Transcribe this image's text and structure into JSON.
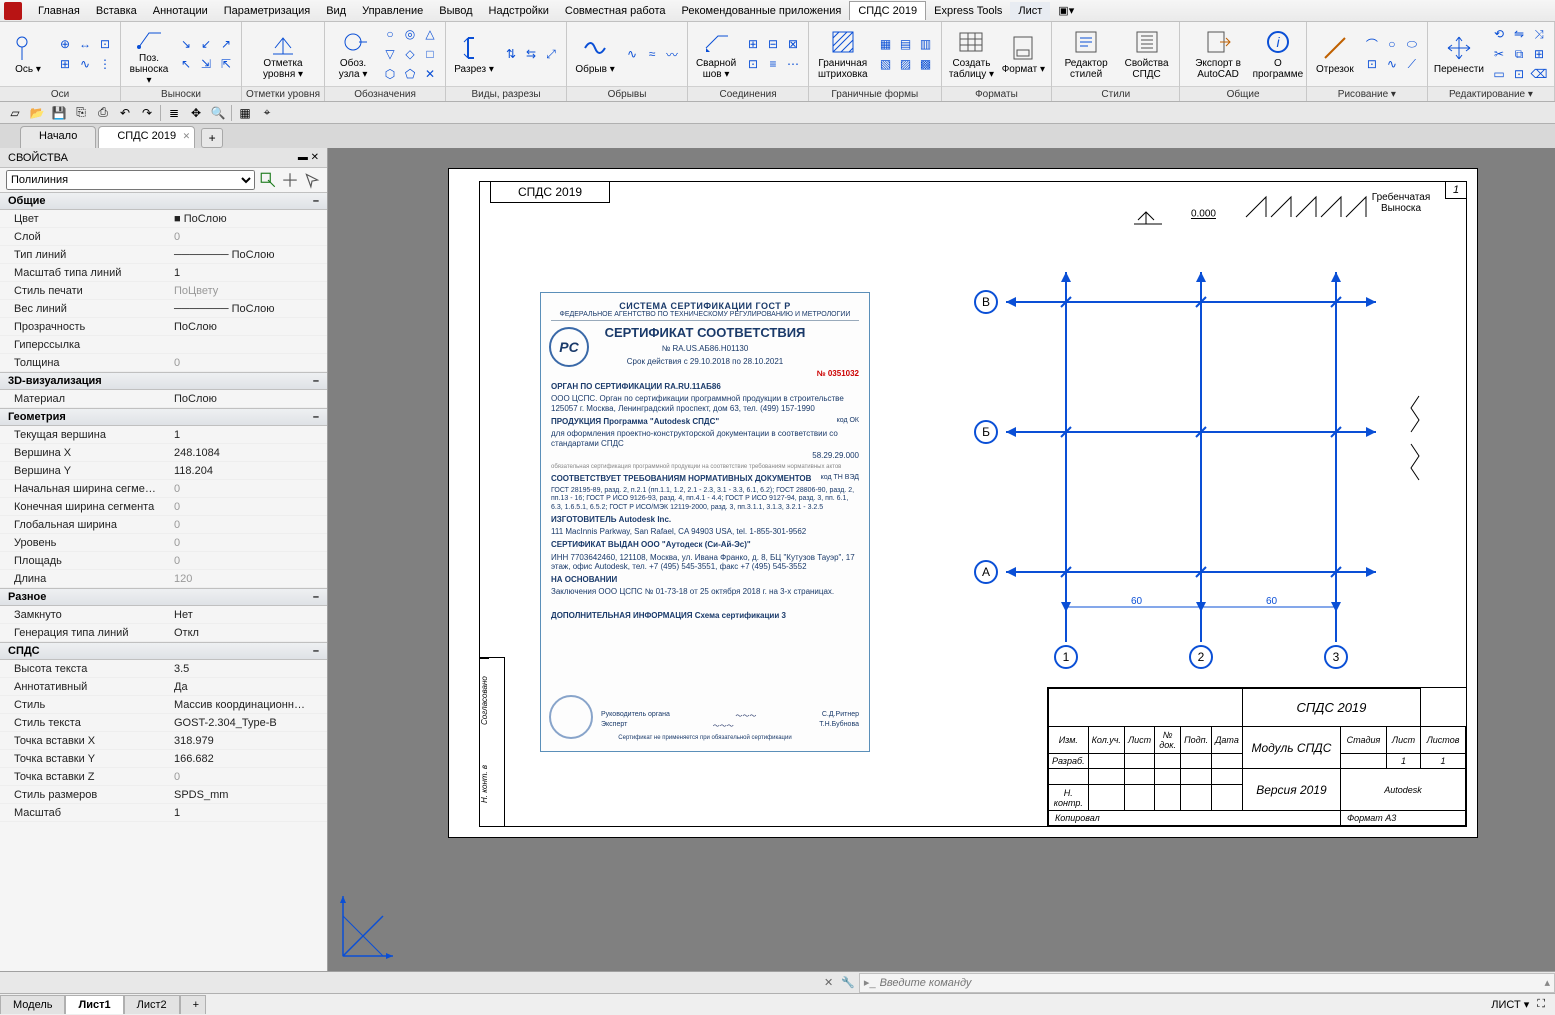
{
  "colors": {
    "accent": "#0a4fd6",
    "ribbon_bg": "#f4f4f4",
    "canvas_bg": "#808080"
  },
  "menubar": {
    "items": [
      "Главная",
      "Вставка",
      "Аннотации",
      "Параметризация",
      "Вид",
      "Управление",
      "Вывод",
      "Надстройки",
      "Совместная работа",
      "Рекомендованные приложения",
      "СПДС 2019",
      "Express Tools",
      "Лист"
    ],
    "active_index": 10
  },
  "ribbon": {
    "groups": [
      {
        "label": "Оси",
        "big": [
          {
            "name": "axis",
            "label": "Ось ▾"
          }
        ],
        "smalls": [
          "⊕",
          "↔",
          "⊡",
          "⊞",
          "∿",
          "⋮"
        ]
      },
      {
        "label": "Выноски",
        "big": [
          {
            "name": "pos-vynoska",
            "label": "Поз. выноска ▾"
          }
        ],
        "smalls": [
          "↘",
          "↙",
          "↗",
          "↖",
          "⇲",
          "⇱"
        ]
      },
      {
        "label": "Отметки уровня",
        "big": [
          {
            "name": "otmetka",
            "label": "Отметка уровня ▾"
          }
        ]
      },
      {
        "label": "Обозначения",
        "big": [
          {
            "name": "uzel",
            "label": "Обоз. узла ▾"
          }
        ],
        "smalls": [
          "○",
          "◎",
          "△",
          "▽",
          "◇",
          "□",
          "⬡",
          "⬠",
          "✕"
        ]
      },
      {
        "label": "Виды, разрезы",
        "big": [
          {
            "name": "razrez",
            "label": "Разрез ▾"
          }
        ],
        "smalls": [
          "⇅",
          "⇆",
          "⤢"
        ]
      },
      {
        "label": "Обрывы",
        "big": [
          {
            "name": "obryv",
            "label": "Обрыв ▾"
          }
        ],
        "smalls": [
          "∿",
          "≈",
          "〰"
        ]
      },
      {
        "label": "Соединения",
        "big": [
          {
            "name": "svarnoy",
            "label": "Сварной шов ▾"
          }
        ],
        "smalls": [
          "⊞",
          "⊟",
          "⊠",
          "⊡",
          "≡",
          "⋯"
        ]
      },
      {
        "label": "Граничные формы",
        "big": [
          {
            "name": "hatch",
            "label": "Граничная штриховка"
          }
        ],
        "smalls": [
          "▦",
          "▤",
          "▥",
          "▧",
          "▨",
          "▩"
        ]
      },
      {
        "label": "Форматы",
        "big": [
          {
            "name": "create-table",
            "label": "Создать таблицу ▾"
          },
          {
            "name": "format",
            "label": "Формат ▾"
          }
        ]
      },
      {
        "label": "Стили",
        "big": [
          {
            "name": "style-editor",
            "label": "Редактор стилей"
          },
          {
            "name": "spds-props",
            "label": "Свойства СПДС"
          }
        ]
      },
      {
        "label": "Общие",
        "big": [
          {
            "name": "export-acad",
            "label": "Экспорт в AutoCAD"
          },
          {
            "name": "about",
            "label": "О программе"
          }
        ]
      },
      {
        "label": "Рисование ▾",
        "big": [
          {
            "name": "line",
            "label": "Отрезок"
          }
        ],
        "smalls": [
          "⌒",
          "○",
          "⬭",
          "⊡",
          "∿",
          "⟋"
        ]
      },
      {
        "label": "Редактирование ▾",
        "big": [
          {
            "name": "move",
            "label": "Перенести"
          }
        ],
        "smalls": [
          "⟲",
          "⇋",
          "⤨",
          "✂",
          "⧉",
          "⊞",
          "▭",
          "⊡",
          "⌫"
        ]
      }
    ]
  },
  "qat": [
    "new",
    "open",
    "save",
    "saveas",
    "print",
    "undo",
    "redo",
    "|",
    "layers",
    "pan",
    "zoom",
    "|",
    "grid",
    "snap"
  ],
  "doctabs": {
    "tabs": [
      "Начало",
      "СПДС 2019"
    ],
    "active_index": 1
  },
  "properties": {
    "title": "СВОЙСТВА",
    "object_type": "Полилиния",
    "sections": [
      {
        "name": "Общие",
        "rows": [
          [
            "Цвет",
            "■ ПоСлою"
          ],
          [
            "Слой",
            "0"
          ],
          [
            "Тип линий",
            "─────── ПоСлою"
          ],
          [
            "Масштаб типа линий",
            "1"
          ],
          [
            "Стиль печати",
            "ПоЦвету"
          ],
          [
            "Вес линий",
            "─────── ПоСлою"
          ],
          [
            "Прозрачность",
            "ПоСлою"
          ],
          [
            "Гиперссылка",
            ""
          ],
          [
            "Толщина",
            "0"
          ]
        ]
      },
      {
        "name": "3D-визуализация",
        "rows": [
          [
            "Материал",
            "ПоСлою"
          ]
        ]
      },
      {
        "name": "Геометрия",
        "rows": [
          [
            "Текущая вершина",
            "1"
          ],
          [
            "Вершина X",
            "248.1084"
          ],
          [
            "Вершина Y",
            "118.204"
          ],
          [
            "Начальная ширина сегме…",
            "0"
          ],
          [
            "Конечная ширина сегмента",
            "0"
          ],
          [
            "Глобальная ширина",
            "0"
          ],
          [
            "Уровень",
            "0"
          ],
          [
            "Площадь",
            "0"
          ],
          [
            "Длина",
            "120"
          ]
        ]
      },
      {
        "name": "Разное",
        "rows": [
          [
            "Замкнуто",
            "Нет"
          ],
          [
            "Генерация типа линий",
            "Откл"
          ]
        ]
      },
      {
        "name": "СПДС",
        "rows": [
          [
            "Высота текста",
            "3.5"
          ],
          [
            "Аннотативный",
            "Да"
          ],
          [
            "Стиль",
            "Массив координационн…"
          ],
          [
            "Стиль текста",
            "GOST-2.304_Type-B"
          ],
          [
            "Точка вставки X",
            "318.979"
          ],
          [
            "Точка вставки Y",
            "166.682"
          ],
          [
            "Точка вставки Z",
            "0"
          ],
          [
            "Стиль размеров",
            "SPDS_mm"
          ],
          [
            "Масштаб",
            "1"
          ]
        ]
      }
    ],
    "dimmed_values": [
      "ПоЦвету",
      "0",
      "120"
    ]
  },
  "paper": {
    "title": "СПДС 2019",
    "page": "1",
    "elev_mark": "0.000",
    "comb_label": "Гребенчатая Выноска",
    "axes": {
      "letters": [
        "В",
        "Б",
        "А"
      ],
      "numbers": [
        "1",
        "2",
        "3"
      ],
      "dims": [
        "60",
        "60"
      ]
    },
    "titleblock": {
      "rows_left": [
        "Изм.",
        "Кол.уч.",
        "Лист",
        "№ док.",
        "Подп.",
        "Дата"
      ],
      "rows2": [
        "Разраб.",
        "",
        "",
        "",
        "",
        ""
      ],
      "rows3": [
        "Н. контр.",
        "",
        "",
        "",
        "",
        ""
      ],
      "project": "СПДС 2019",
      "module": "Модуль СПДС",
      "version": "Версия 2019",
      "company": "Autodesk",
      "stage_hdr": [
        "Стадия",
        "Лист",
        "Листов"
      ],
      "stage_vals": [
        "",
        "1",
        "1"
      ],
      "footer_left": "Копировал",
      "footer_right": "Формат   A3"
    },
    "side_cells": [
      "Согласовано",
      "Н. конт. в"
    ]
  },
  "certificate": {
    "line1": "СИСТЕМА СЕРТИФИКАЦИИ ГОСТ Р",
    "line2": "ФЕДЕРАЛЬНОЕ АГЕНТСТВО ПО ТЕХНИЧЕСКОМУ РЕГУЛИРОВАНИЮ И МЕТРОЛОГИИ",
    "title": "СЕРТИФИКАТ СООТВЕТСТВИЯ",
    "num": "№   RA.US.АБ86.Н01130",
    "valid": "Срок действия с   29.10.2018    по    28.10.2021",
    "red": "№ 0351032",
    "organ": "ОРГАН ПО СЕРТИФИКАЦИИ    RA.RU.11АБ86",
    "org_desc": "ООО ЦСПС. Орган по сертификации программной продукции в строительстве 125057 г. Москва, Ленинградский проспект, дом 63, тел. (499) 157-1990",
    "product_hdr": "ПРОДУКЦИЯ        Программа \"Autodesk СПДС\"",
    "product_desc": "для оформления проектно-конструкторской документации в соответствии со стандартами СПДС",
    "code": "58.29.29.000",
    "gost_hdr": "СООТВЕТСТВУЕТ ТРЕБОВАНИЯМ НОРМАТИВНЫХ ДОКУМЕНТОВ",
    "gost": "ГОСТ 28195-89, разд. 2, п.2.1 (пп.1.1, 1.2, 2.1 - 2.3, 3.1 - 3.3, 6.1, 6.2); ГОСТ 28806-90, разд. 2, пп.13 - 16; ГОСТ Р ИСО 9126-93, разд. 4, пп.4.1 - 4.4; ГОСТ Р ИСО 9127-94, разд. 3, пп. 6.1, 6.3, 1.6.5.1, 6.5.2; ГОСТ Р ИСО/МЭК 12119-2000, разд. 3, пп.3.1.1, 3.1.3, 3.2.1 - 3.2.5",
    "maker_hdr": "ИЗГОТОВИТЕЛЬ                                     Autodesk Inc.",
    "maker": "111 MacInnis Parkway, San Rafael, CA 94903 USA, tel. 1-855-301-9562",
    "issued_hdr": "СЕРТИФИКАТ ВЫДАН             ООО \"Аутодеск (Си-Ай-Эс)\"",
    "issued": "ИНН 7703642460, 121108, Москва, ул. Ивана Франко, д. 8, БЦ \"Кутузов Тауэр\", 17 этаж, офис Autodesk, тел. +7 (495) 545-3551, факс +7 (495) 545-3552",
    "basis_hdr": "НА ОСНОВАНИИ",
    "basis": "Заключения ООО ЦСПС № 01-73-18 от 25 октября 2018 г. на 3-х страницах.",
    "extra": "ДОПОЛНИТЕЛЬНАЯ ИНФОРМАЦИЯ            Схема сертификации  3",
    "sig1_role": "Руководитель органа",
    "sig1_name": "С.Д.Ритнер",
    "sig2_role": "Эксперт",
    "sig2_name": "Т.Н.Бубнова",
    "foot": "Сертификат не применяется при обязательной сертификации"
  },
  "cmd": {
    "placeholder": "Введите команду"
  },
  "status": {
    "paper_tabs": [
      "Модель",
      "Лист1",
      "Лист2"
    ],
    "active": 1,
    "right": "ЛИСТ ▾"
  }
}
